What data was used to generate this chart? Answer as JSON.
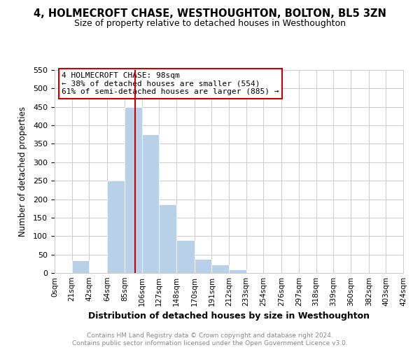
{
  "title": "4, HOLMECROFT CHASE, WESTHOUGHTON, BOLTON, BL5 3ZN",
  "subtitle": "Size of property relative to detached houses in Westhoughton",
  "xlabel": "Distribution of detached houses by size in Westhoughton",
  "ylabel": "Number of detached properties",
  "bar_color": "#b8d0e8",
  "vline_x": 98,
  "vline_color": "#cc0000",
  "annotation_title": "4 HOLMECROFT CHASE: 98sqm",
  "annotation_line1": "← 38% of detached houses are smaller (554)",
  "annotation_line2": "61% of semi-detached houses are larger (885) →",
  "bin_edges": [
    0,
    21,
    42,
    64,
    85,
    106,
    127,
    148,
    170,
    191,
    212,
    233,
    254,
    276,
    297,
    318,
    339,
    360,
    382,
    403,
    424
  ],
  "bin_counts": [
    0,
    35,
    0,
    250,
    450,
    375,
    185,
    90,
    38,
    23,
    10,
    0,
    0,
    0,
    0,
    0,
    0,
    0,
    0,
    0
  ],
  "ylim": [
    0,
    550
  ],
  "yticks": [
    0,
    50,
    100,
    150,
    200,
    250,
    300,
    350,
    400,
    450,
    500,
    550
  ],
  "tick_labels": [
    "0sqm",
    "21sqm",
    "42sqm",
    "64sqm",
    "85sqm",
    "106sqm",
    "127sqm",
    "148sqm",
    "170sqm",
    "191sqm",
    "212sqm",
    "233sqm",
    "254sqm",
    "276sqm",
    "297sqm",
    "318sqm",
    "339sqm",
    "360sqm",
    "382sqm",
    "403sqm",
    "424sqm"
  ],
  "footer1": "Contains HM Land Registry data © Crown copyright and database right 2024.",
  "footer2": "Contains public sector information licensed under the Open Government Licence v3.0.",
  "background_color": "#ffffff",
  "grid_color": "#cccccc"
}
